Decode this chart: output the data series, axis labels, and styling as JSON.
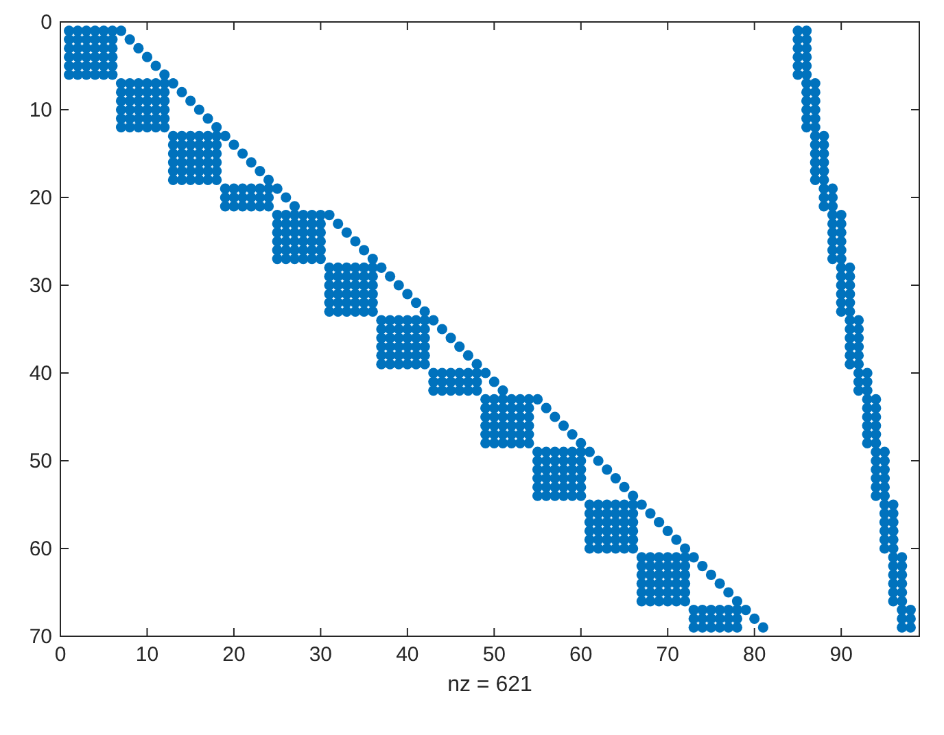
{
  "chart_data": {
    "type": "scatter",
    "xlabel": "nz = 621",
    "xlim": [
      0,
      99
    ],
    "ylim": [
      70,
      0
    ],
    "xticks": [
      0,
      10,
      20,
      30,
      40,
      50,
      60,
      70,
      80,
      90
    ],
    "yticks": [
      0,
      10,
      20,
      30,
      40,
      50,
      60,
      70
    ],
    "marker": "circle",
    "grid": false,
    "series": [
      {
        "color": "#0072bd",
        "x": [
          1,
          2,
          3,
          4,
          5,
          6,
          1,
          2,
          3,
          4,
          5,
          6,
          1,
          2,
          3,
          4,
          5,
          6,
          1,
          2,
          3,
          4,
          5,
          6,
          1,
          2,
          3,
          4,
          5,
          6,
          1,
          2,
          3,
          4,
          5,
          6,
          7,
          8,
          9,
          10,
          11,
          12,
          7,
          8,
          9,
          10,
          11,
          12,
          7,
          8,
          9,
          10,
          11,
          12,
          7,
          8,
          9,
          10,
          11,
          12,
          7,
          8,
          9,
          10,
          11,
          12,
          7,
          8,
          9,
          10,
          11,
          12,
          13,
          14,
          15,
          16,
          17,
          18,
          13,
          14,
          15,
          16,
          17,
          18,
          13,
          14,
          15,
          16,
          17,
          18,
          13,
          14,
          15,
          16,
          17,
          18,
          13,
          14,
          15,
          16,
          17,
          18,
          13,
          14,
          15,
          16,
          17,
          18,
          19,
          20,
          21,
          22,
          23,
          24,
          19,
          20,
          21,
          22,
          23,
          24,
          19,
          20,
          21,
          22,
          23,
          24,
          25,
          26,
          27,
          28,
          29,
          30,
          25,
          26,
          27,
          28,
          29,
          30,
          25,
          26,
          27,
          28,
          29,
          30,
          25,
          26,
          27,
          28,
          29,
          30,
          25,
          26,
          27,
          28,
          29,
          30,
          25,
          26,
          27,
          28,
          29,
          30,
          31,
          32,
          33,
          34,
          35,
          36,
          31,
          32,
          33,
          34,
          35,
          36,
          31,
          32,
          33,
          34,
          35,
          36,
          31,
          32,
          33,
          34,
          35,
          36,
          31,
          32,
          33,
          34,
          35,
          36,
          31,
          32,
          33,
          34,
          35,
          36,
          37,
          38,
          39,
          40,
          41,
          42,
          37,
          38,
          39,
          40,
          41,
          42,
          37,
          38,
          39,
          40,
          41,
          42,
          37,
          38,
          39,
          40,
          41,
          42,
          37,
          38,
          39,
          40,
          41,
          42,
          37,
          38,
          39,
          40,
          41,
          42,
          43,
          44,
          45,
          46,
          47,
          48,
          43,
          44,
          45,
          46,
          47,
          48,
          43,
          44,
          45,
          46,
          47,
          48,
          49,
          50,
          51,
          52,
          53,
          54,
          49,
          50,
          51,
          52,
          53,
          54,
          49,
          50,
          51,
          52,
          53,
          54,
          49,
          50,
          51,
          52,
          53,
          54,
          49,
          50,
          51,
          52,
          53,
          54,
          49,
          50,
          51,
          52,
          53,
          54,
          55,
          56,
          57,
          58,
          59,
          60,
          55,
          56,
          57,
          58,
          59,
          60,
          55,
          56,
          57,
          58,
          59,
          60,
          55,
          56,
          57,
          58,
          59,
          60,
          55,
          56,
          57,
          58,
          59,
          60,
          55,
          56,
          57,
          58,
          59,
          60,
          61,
          62,
          63,
          64,
          65,
          66,
          61,
          62,
          63,
          64,
          65,
          66,
          61,
          62,
          63,
          64,
          65,
          66,
          61,
          62,
          63,
          64,
          65,
          66,
          61,
          62,
          63,
          64,
          65,
          66,
          61,
          62,
          63,
          64,
          65,
          66,
          67,
          68,
          69,
          70,
          71,
          72,
          67,
          68,
          69,
          70,
          71,
          72,
          67,
          68,
          69,
          70,
          71,
          72,
          67,
          68,
          69,
          70,
          71,
          72,
          67,
          68,
          69,
          70,
          71,
          72,
          67,
          68,
          69,
          70,
          71,
          72,
          73,
          74,
          75,
          76,
          77,
          78,
          73,
          74,
          75,
          76,
          77,
          78,
          73,
          74,
          75,
          76,
          77,
          78
        ],
        "values": [
          1,
          1,
          1,
          1,
          1,
          1,
          2,
          2,
          2,
          2,
          2,
          2,
          3,
          3,
          3,
          3,
          3,
          3,
          4,
          4,
          4,
          4,
          4,
          4,
          5,
          5,
          5,
          5,
          5,
          5,
          6,
          6,
          6,
          6,
          6,
          6,
          7,
          7,
          7,
          7,
          7,
          7,
          8,
          8,
          8,
          8,
          8,
          8,
          9,
          9,
          9,
          9,
          9,
          9,
          10,
          10,
          10,
          10,
          10,
          10,
          11,
          11,
          11,
          11,
          11,
          11,
          12,
          12,
          12,
          12,
          12,
          12,
          13,
          13,
          13,
          13,
          13,
          13,
          14,
          14,
          14,
          14,
          14,
          14,
          15,
          15,
          15,
          15,
          15,
          15,
          16,
          16,
          16,
          16,
          16,
          16,
          17,
          17,
          17,
          17,
          17,
          17,
          18,
          18,
          18,
          18,
          18,
          18,
          19,
          19,
          19,
          19,
          19,
          19,
          20,
          20,
          20,
          20,
          20,
          20,
          21,
          21,
          21,
          21,
          21,
          21,
          22,
          22,
          22,
          22,
          22,
          22,
          23,
          23,
          23,
          23,
          23,
          23,
          24,
          24,
          24,
          24,
          24,
          24,
          25,
          25,
          25,
          25,
          25,
          25,
          26,
          26,
          26,
          26,
          26,
          26,
          27,
          27,
          27,
          27,
          27,
          27,
          28,
          28,
          28,
          28,
          28,
          28,
          29,
          29,
          29,
          29,
          29,
          29,
          30,
          30,
          30,
          30,
          30,
          30,
          31,
          31,
          31,
          31,
          31,
          31,
          32,
          32,
          32,
          32,
          32,
          32,
          33,
          33,
          33,
          33,
          33,
          33,
          34,
          34,
          34,
          34,
          34,
          34,
          35,
          35,
          35,
          35,
          35,
          35,
          36,
          36,
          36,
          36,
          36,
          36,
          37,
          37,
          37,
          37,
          37,
          37,
          38,
          38,
          38,
          38,
          38,
          38,
          39,
          39,
          39,
          39,
          39,
          39,
          40,
          40,
          40,
          40,
          40,
          40,
          41,
          41,
          41,
          41,
          41,
          41,
          42,
          42,
          42,
          42,
          42,
          42,
          43,
          43,
          43,
          43,
          43,
          43,
          44,
          44,
          44,
          44,
          44,
          44,
          45,
          45,
          45,
          45,
          45,
          45,
          46,
          46,
          46,
          46,
          46,
          46,
          47,
          47,
          47,
          47,
          47,
          47,
          48,
          48,
          48,
          48,
          48,
          48,
          49,
          49,
          49,
          49,
          49,
          49,
          50,
          50,
          50,
          50,
          50,
          50,
          51,
          51,
          51,
          51,
          51,
          51,
          52,
          52,
          52,
          52,
          52,
          52,
          53,
          53,
          53,
          53,
          53,
          53,
          54,
          54,
          54,
          54,
          54,
          54,
          55,
          55,
          55,
          55,
          55,
          55,
          56,
          56,
          56,
          56,
          56,
          56,
          57,
          57,
          57,
          57,
          57,
          57,
          58,
          58,
          58,
          58,
          58,
          58,
          59,
          59,
          59,
          59,
          59,
          59,
          60,
          60,
          60,
          60,
          60,
          60,
          61,
          61,
          61,
          61,
          61,
          61,
          62,
          62,
          62,
          62,
          62,
          62,
          63,
          63,
          63,
          63,
          63,
          63,
          64,
          64,
          64,
          64,
          64,
          64,
          65,
          65,
          65,
          65,
          65,
          65,
          66,
          66,
          66,
          66,
          66,
          66,
          67,
          67,
          67,
          67,
          67,
          67,
          68,
          68,
          68,
          68,
          68,
          68,
          69,
          69,
          69,
          69,
          69,
          69
        ]
      },
      {
        "color": "#0072bd",
        "x": [
          7,
          8,
          9,
          10,
          11,
          12,
          13,
          14,
          15,
          16,
          17,
          18,
          19,
          20,
          21,
          22,
          23,
          24,
          25,
          26,
          27,
          31,
          32,
          33,
          34,
          35,
          36,
          37,
          38,
          39,
          40,
          41,
          42,
          43,
          44,
          45,
          46,
          47,
          48,
          49,
          50,
          51,
          55,
          56,
          57,
          58,
          59,
          60,
          61,
          62,
          63,
          64,
          65,
          66,
          67,
          68,
          69,
          70,
          71,
          72,
          73,
          74,
          75,
          76,
          77,
          78,
          79,
          80,
          81
        ],
        "values": [
          1,
          2,
          3,
          4,
          5,
          6,
          7,
          8,
          9,
          10,
          11,
          12,
          13,
          14,
          15,
          16,
          17,
          18,
          19,
          20,
          21,
          22,
          23,
          24,
          25,
          26,
          27,
          28,
          29,
          30,
          31,
          32,
          33,
          34,
          35,
          36,
          37,
          38,
          39,
          40,
          41,
          42,
          43,
          44,
          45,
          46,
          47,
          48,
          49,
          50,
          51,
          52,
          53,
          54,
          55,
          56,
          57,
          58,
          59,
          60,
          61,
          62,
          63,
          64,
          65,
          66,
          67,
          68,
          69
        ]
      },
      {
        "color": "#0072bd",
        "x": [
          85,
          85,
          85,
          85,
          85,
          85,
          86,
          86,
          86,
          86,
          86,
          86,
          87,
          87,
          87,
          87,
          87,
          87,
          88,
          88,
          88,
          89,
          89,
          89,
          89,
          89,
          89,
          90,
          90,
          90,
          90,
          90,
          90,
          91,
          91,
          91,
          91,
          91,
          91,
          92,
          92,
          92,
          93,
          93,
          93,
          93,
          93,
          93,
          94,
          94,
          94,
          94,
          94,
          94,
          95,
          95,
          95,
          95,
          95,
          95,
          96,
          96,
          96,
          96,
          96,
          96,
          97,
          97,
          97,
          86,
          86,
          86,
          86,
          86,
          86,
          87,
          87,
          87,
          87,
          87,
          87,
          88,
          88,
          88,
          88,
          88,
          88,
          89,
          89,
          89,
          90,
          90,
          90,
          90,
          90,
          90,
          91,
          91,
          91,
          91,
          91,
          91,
          92,
          92,
          92,
          92,
          92,
          92,
          93,
          93,
          93,
          94,
          94,
          94,
          94,
          94,
          94,
          95,
          95,
          95,
          95,
          95,
          95,
          96,
          96,
          96,
          96,
          96,
          96,
          97,
          97,
          97,
          97,
          97,
          97,
          98,
          98,
          98
        ],
        "values": [
          1,
          2,
          3,
          4,
          5,
          6,
          7,
          8,
          9,
          10,
          11,
          12,
          13,
          14,
          15,
          16,
          17,
          18,
          19,
          20,
          21,
          22,
          23,
          24,
          25,
          26,
          27,
          28,
          29,
          30,
          31,
          32,
          33,
          34,
          35,
          36,
          37,
          38,
          39,
          40,
          41,
          42,
          43,
          44,
          45,
          46,
          47,
          48,
          49,
          50,
          51,
          52,
          53,
          54,
          55,
          56,
          57,
          58,
          59,
          60,
          61,
          62,
          63,
          64,
          65,
          66,
          67,
          68,
          69,
          1,
          2,
          3,
          4,
          5,
          6,
          7,
          8,
          9,
          10,
          11,
          12,
          13,
          14,
          15,
          16,
          17,
          18,
          19,
          20,
          21,
          22,
          23,
          24,
          25,
          26,
          27,
          28,
          29,
          30,
          31,
          32,
          33,
          34,
          35,
          36,
          37,
          38,
          39,
          40,
          41,
          42,
          43,
          44,
          45,
          46,
          47,
          48,
          49,
          50,
          51,
          52,
          53,
          54,
          55,
          56,
          57,
          58,
          59,
          60,
          61,
          62,
          63,
          64,
          65,
          66,
          67,
          68,
          69
        ]
      }
    ]
  }
}
